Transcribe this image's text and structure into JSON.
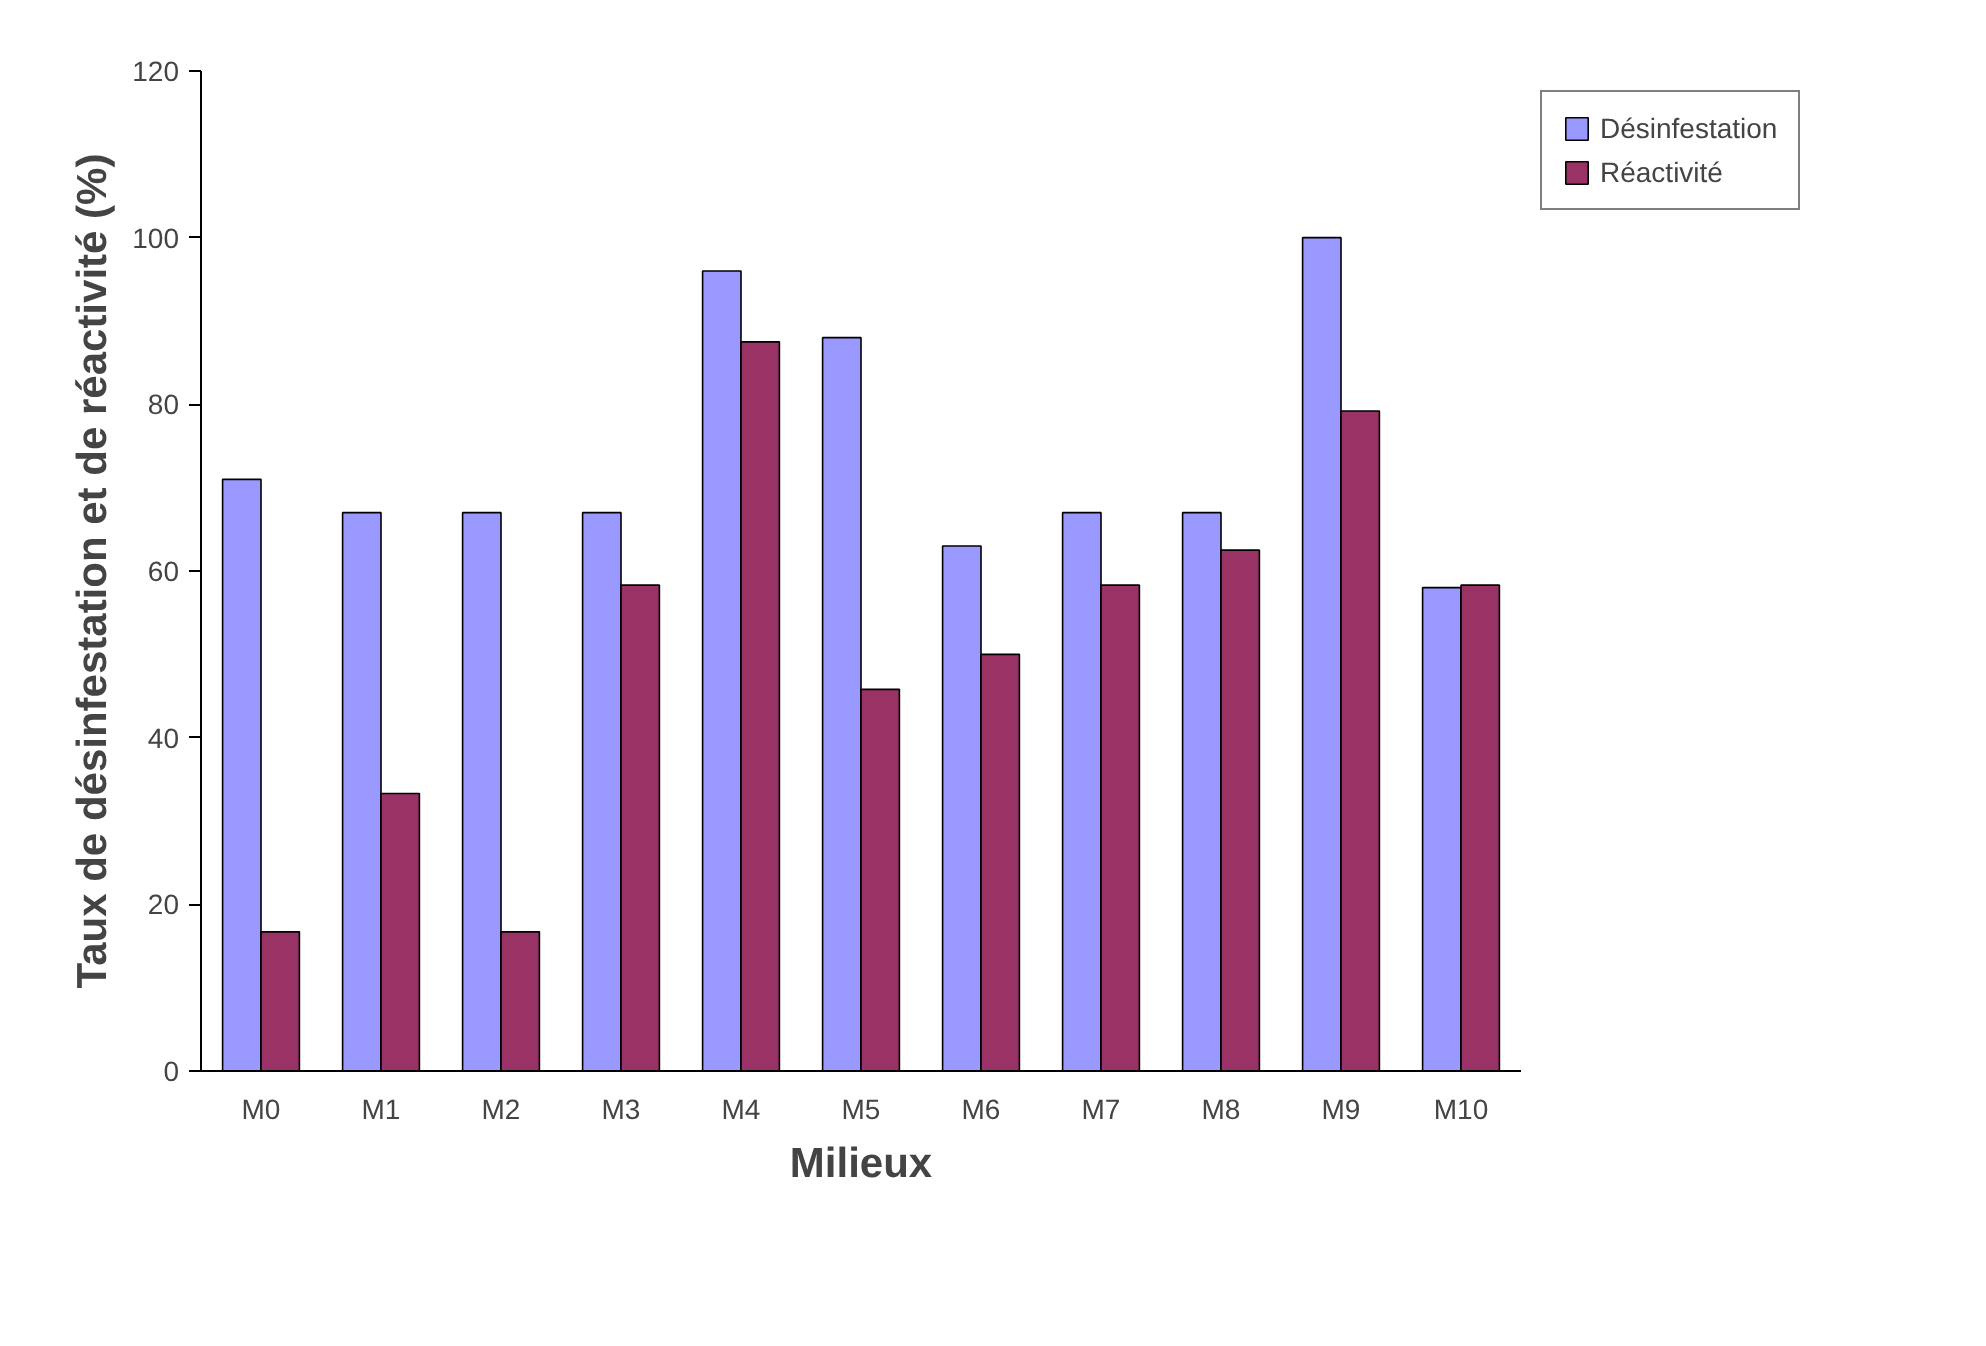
{
  "chart_data": {
    "type": "bar",
    "xlabel": "Milieux",
    "ylabel": "Taux de désinfestation et de réactivité (%)",
    "categories": [
      "M0",
      "M1",
      "M2",
      "M3",
      "M4",
      "M5",
      "M6",
      "M7",
      "M8",
      "M9",
      "M10"
    ],
    "series": [
      {
        "name": "Désinfestation",
        "color": "#9999ff",
        "values": [
          71,
          67,
          67,
          67,
          96,
          88,
          63,
          67,
          67,
          100,
          58
        ]
      },
      {
        "name": "Réactivité",
        "color": "#993366",
        "values": [
          16.7,
          33.3,
          16.7,
          58.3,
          87.5,
          45.8,
          50,
          58.3,
          62.5,
          79.2,
          58.3
        ]
      }
    ],
    "ylim": [
      0,
      120
    ],
    "yticks": [
      0,
      20,
      40,
      60,
      80,
      100,
      120
    ],
    "grid": false,
    "legend": "top right"
  }
}
